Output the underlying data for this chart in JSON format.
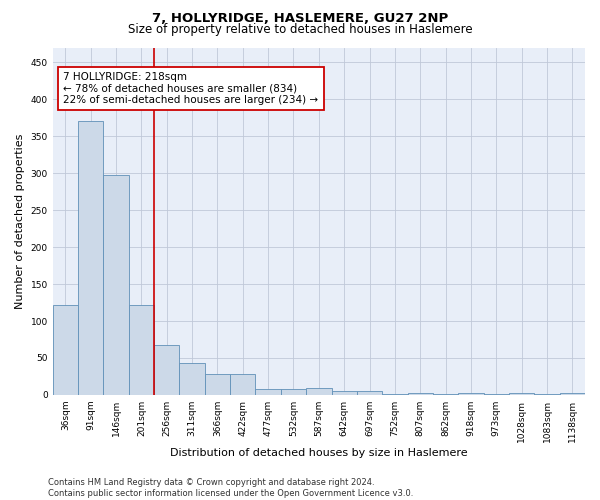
{
  "title": "7, HOLLYRIDGE, HASLEMERE, GU27 2NP",
  "subtitle": "Size of property relative to detached houses in Haslemere",
  "xlabel": "Distribution of detached houses by size in Haslemere",
  "ylabel": "Number of detached properties",
  "bar_color": "#ccd9e8",
  "bar_edge_color": "#6090b8",
  "background_color": "#e8eef8",
  "grid_color": "#c0c8d8",
  "vline_color": "#cc0000",
  "annotation_line1": "7 HOLLYRIDGE: 218sqm",
  "annotation_line2": "← 78% of detached houses are smaller (834)",
  "annotation_line3": "22% of semi-detached houses are larger (234) →",
  "annotation_box_color": "white",
  "annotation_box_edge": "#cc0000",
  "bins": [
    "36sqm",
    "91sqm",
    "146sqm",
    "201sqm",
    "256sqm",
    "311sqm",
    "366sqm",
    "422sqm",
    "477sqm",
    "532sqm",
    "587sqm",
    "642sqm",
    "697sqm",
    "752sqm",
    "807sqm",
    "862sqm",
    "918sqm",
    "973sqm",
    "1028sqm",
    "1083sqm",
    "1138sqm"
  ],
  "values": [
    122,
    370,
    297,
    122,
    68,
    43,
    29,
    29,
    8,
    8,
    10,
    5,
    5,
    1,
    3,
    1,
    2,
    1,
    3,
    1,
    2
  ],
  "ylim": [
    0,
    470
  ],
  "yticks": [
    0,
    50,
    100,
    150,
    200,
    250,
    300,
    350,
    400,
    450
  ],
  "vline_bin_index": 3,
  "footer": "Contains HM Land Registry data © Crown copyright and database right 2024.\nContains public sector information licensed under the Open Government Licence v3.0.",
  "title_fontsize": 9.5,
  "subtitle_fontsize": 8.5,
  "xlabel_fontsize": 8,
  "ylabel_fontsize": 8,
  "tick_fontsize": 6.5,
  "footer_fontsize": 6,
  "annot_fontsize": 7.5
}
